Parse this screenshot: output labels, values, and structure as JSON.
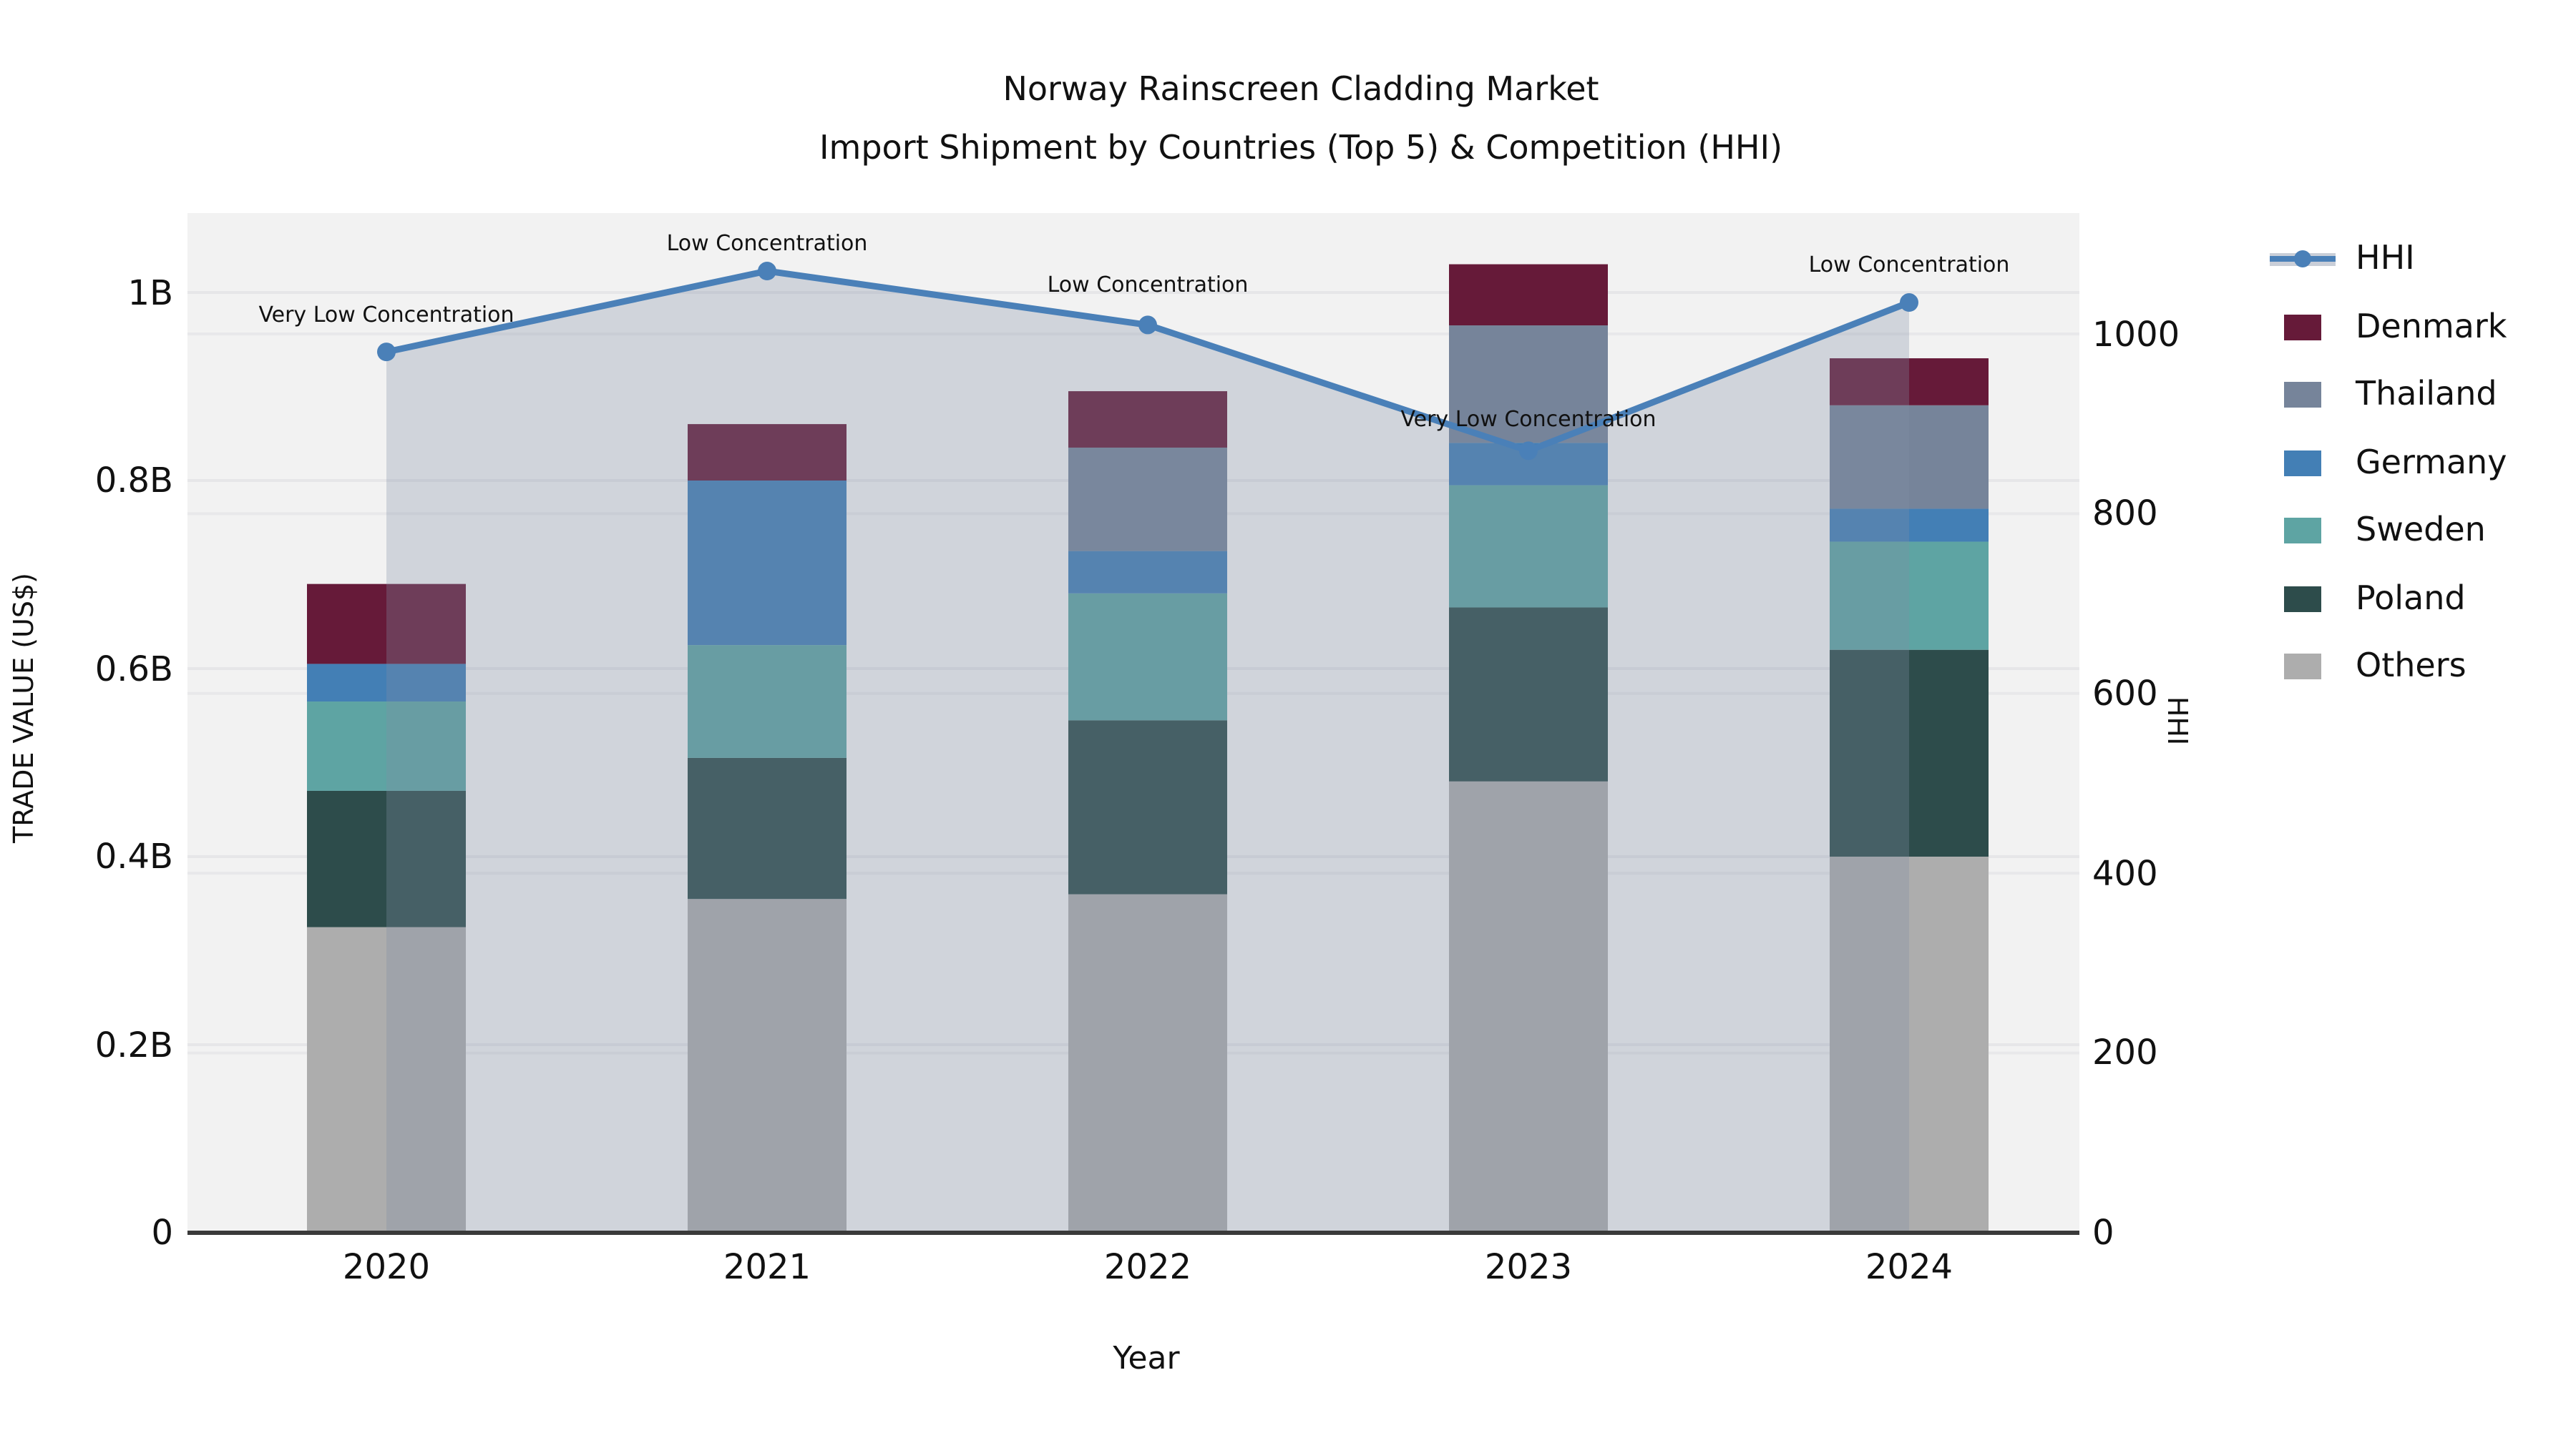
{
  "title": {
    "line1": "Norway Rainscreen Cladding Market",
    "line2": "Import Shipment by Countries (Top 5) & Competition (HHI)"
  },
  "axes": {
    "x": {
      "label": "Year",
      "categories": [
        "2020",
        "2021",
        "2022",
        "2023",
        "2024"
      ]
    },
    "y_left": {
      "label": "TRADE VALUE (US$)",
      "tick_labels": [
        "0",
        "0.2B",
        "0.4B",
        "0.6B",
        "0.8B",
        "1B"
      ],
      "tick_values": [
        0,
        0.2,
        0.4,
        0.6,
        0.8,
        1.0
      ]
    },
    "y_right": {
      "label": "HHI",
      "tick_labels": [
        "0",
        "200",
        "400",
        "600",
        "800",
        "1000"
      ],
      "tick_values": [
        0,
        200,
        400,
        600,
        800,
        1000
      ]
    }
  },
  "legend": [
    {
      "label": "HHI",
      "type": "line",
      "color": "#4a80b8"
    },
    {
      "label": "Denmark",
      "type": "box",
      "color": "#661a39"
    },
    {
      "label": "Thailand",
      "type": "box",
      "color": "#76849a"
    },
    {
      "label": "Germany",
      "type": "box",
      "color": "#437fb5"
    },
    {
      "label": "Sweden",
      "type": "box",
      "color": "#5ea4a3"
    },
    {
      "label": "Poland",
      "type": "box",
      "color": "#2d4c4b"
    },
    {
      "label": "Others",
      "type": "box",
      "color": "#adadad"
    }
  ],
  "chart_data": {
    "type": "bar",
    "subtype": "stacked-bars-with-line-overlay",
    "title": "Norway Rainscreen Cladding Market — Import Shipment by Countries (Top 5) & Competition (HHI)",
    "xlabel": "Year",
    "ylabel_left": "TRADE VALUE (US$)",
    "ylabel_right": "HHI",
    "categories": [
      "2020",
      "2021",
      "2022",
      "2023",
      "2024"
    ],
    "bar_unit": "billion US$",
    "stack_order_bottom_to_top": [
      "Others",
      "Poland",
      "Sweden",
      "Germany",
      "Thailand",
      "Denmark"
    ],
    "series": [
      {
        "name": "Denmark",
        "axis": "left",
        "color": "#661a39",
        "values": [
          0.085,
          0.06,
          0.06,
          0.065,
          0.05
        ]
      },
      {
        "name": "Thailand",
        "axis": "left",
        "color": "#76849a",
        "values": [
          0.0,
          0.0,
          0.11,
          0.125,
          0.11
        ]
      },
      {
        "name": "Germany",
        "axis": "left",
        "color": "#437fb5",
        "values": [
          0.04,
          0.175,
          0.045,
          0.045,
          0.035
        ]
      },
      {
        "name": "Sweden",
        "axis": "left",
        "color": "#5ea4a3",
        "values": [
          0.095,
          0.12,
          0.135,
          0.13,
          0.115
        ]
      },
      {
        "name": "Poland",
        "axis": "left",
        "color": "#2d4c4b",
        "values": [
          0.145,
          0.15,
          0.185,
          0.185,
          0.22
        ]
      },
      {
        "name": "Others",
        "axis": "left",
        "color": "#adadad",
        "values": [
          0.325,
          0.355,
          0.36,
          0.48,
          0.4
        ]
      }
    ],
    "bar_totals": [
      0.69,
      0.86,
      0.895,
      1.03,
      0.93
    ],
    "hhi_line": {
      "name": "HHI",
      "axis": "right",
      "color": "#4a80b8",
      "area_overlay_color": "rgba(130,144,166,0.30)",
      "values": [
        980,
        1070,
        1010,
        870,
        1035
      ],
      "annotations": [
        "Very Low Concentration",
        "Low Concentration",
        "Low Concentration",
        "Very Low Concentration",
        "Low Concentration"
      ]
    },
    "ylim_left": [
      0,
      1.085
    ],
    "ylim_right": [
      0,
      1135
    ],
    "grid": true,
    "legend_position": "right",
    "plot_background": "#f2f2f2"
  }
}
